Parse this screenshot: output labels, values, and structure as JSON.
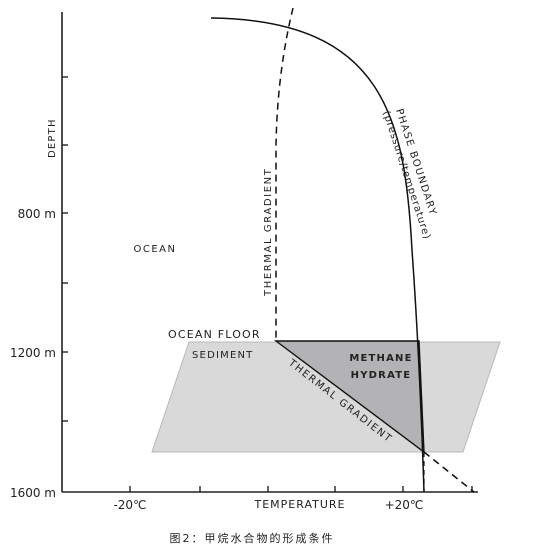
{
  "figure": {
    "caption": "图2：甲烷水合物的形成条件"
  },
  "axes": {
    "y_title": "DEPTH",
    "y_ticks": [
      {
        "label": "800 m",
        "depth": 800
      },
      {
        "label": "1200 m",
        "depth": 1200
      },
      {
        "label": "1600 m",
        "depth": 1600
      }
    ],
    "x_title": "TEMPERATURE",
    "x_ticks": [
      {
        "label": "-20℃",
        "temp": -20
      },
      {
        "label": "+20℃",
        "temp": 20
      }
    ]
  },
  "labels": {
    "ocean": "OCEAN",
    "ocean_floor": "OCEAN FLOOR",
    "sediment": "SEDIMENT",
    "methane_line1": "METHANE",
    "methane_line2": "HYDRATE",
    "thermal_gradient_vertical": "THERMAL GRADIENT",
    "thermal_gradient_diagonal": "THERMAL GRADIENT",
    "phase_line1": "PHASE BOUNDARY",
    "phase_line2": "(pressure/temperature)"
  },
  "colors": {
    "axis": "#222222",
    "curve": "#111111",
    "sediment_fill": "#d9d9d9",
    "sediment_stroke": "#b8b8b8",
    "hydrate_fill": "#b3b3b5",
    "caption": "#222222"
  }
}
